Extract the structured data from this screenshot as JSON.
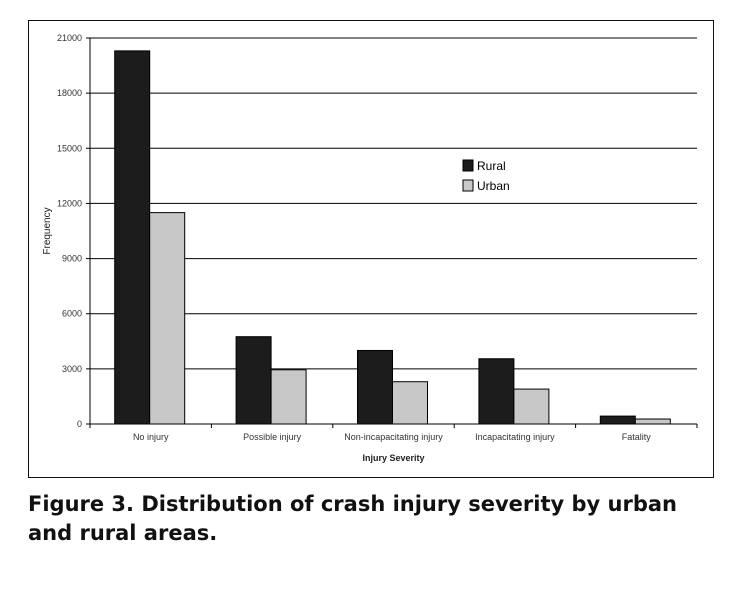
{
  "caption": "Figure 3. Distribution of crash injury severity by urban and rural areas.",
  "colors": {
    "rural": "#1c1c1c",
    "urban": "#c8c8c8",
    "grid": "#000000"
  },
  "chart_data": {
    "type": "bar",
    "title": "",
    "xlabel": "Injury Severity",
    "ylabel": "Frequency",
    "ylim": [
      0,
      21000
    ],
    "yticks": [
      0,
      3000,
      6000,
      9000,
      12000,
      15000,
      18000,
      21000
    ],
    "ytick_labels": [
      "0",
      "3000",
      "6000",
      "9000",
      "12000",
      "15000",
      "18000",
      "21000"
    ],
    "grid": true,
    "legend_position": "center-right",
    "categories": [
      "No injury",
      "Possible injury",
      "Non-incapacitating injury",
      "Incapacitating injury",
      "Fatality"
    ],
    "series": [
      {
        "name": "Rural",
        "values": [
          20300,
          4750,
          4000,
          3550,
          430
        ]
      },
      {
        "name": "Urban",
        "values": [
          11500,
          2950,
          2300,
          1900,
          270
        ]
      }
    ]
  }
}
